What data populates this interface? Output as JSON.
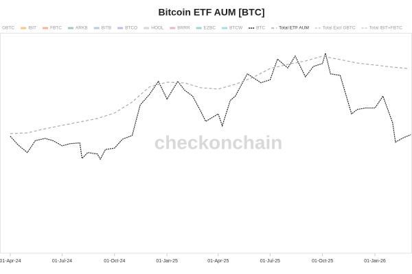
{
  "chart_data": {
    "type": "line",
    "title": "Bitcoin ETF AUM [BTC]",
    "watermark": "checkonchain",
    "legend_before": [
      {
        "name": "GBTC",
        "color": "#c9c0a8"
      },
      {
        "name": "IBIT",
        "color": "#f2c98a"
      },
      {
        "name": "FBTC",
        "color": "#f5b49a"
      },
      {
        "name": "ARKB",
        "color": "#a9c4b8"
      },
      {
        "name": "BITB",
        "color": "#b9c9e6"
      },
      {
        "name": "BTCO",
        "color": "#c5b9e6"
      },
      {
        "name": "HODL",
        "color": "#d7d7d7"
      },
      {
        "name": "BRRR",
        "color": "#e6b9c9"
      },
      {
        "name": "EZBC",
        "color": "#9fd4d0"
      },
      {
        "name": "BTCW",
        "color": "#a8dde6"
      }
    ],
    "legend_after": [
      {
        "name": "Total Excl GBTC",
        "color": "#cccccc"
      },
      {
        "name": "Total IBIT+FBTC",
        "color": "#cccccc"
      }
    ],
    "xlim": [
      "2024-03-14",
      "2026-03-07"
    ],
    "xticks": [
      {
        "value": "2024-04-01",
        "label": "01-Apr-24"
      },
      {
        "value": "2024-07-01",
        "label": "01-Jul-24"
      },
      {
        "value": "2024-10-01",
        "label": "01-Oct-24"
      },
      {
        "value": "2025-01-01",
        "label": "01-Jan-25"
      },
      {
        "value": "2025-04-01",
        "label": "01-Apr-25"
      },
      {
        "value": "2025-07-01",
        "label": "01-Jul-25"
      },
      {
        "value": "2025-10-01",
        "label": "01-Oct-25"
      },
      {
        "value": "2026-01-01",
        "label": "01-Jan-26"
      }
    ],
    "ylim": [
      -10000,
      140000
    ],
    "y2lim": [
      25000,
      1650000
    ],
    "series": [
      {
        "name": "BTC",
        "color": "#222222",
        "dash": "2,1",
        "x": [
          "2024-04-01",
          "2024-04-15",
          "2024-05-01",
          "2024-05-15",
          "2024-06-01",
          "2024-06-15",
          "2024-07-01",
          "2024-07-15",
          "2024-08-01",
          "2024-08-05",
          "2024-08-15",
          "2024-09-01",
          "2024-09-06",
          "2024-09-15",
          "2024-10-01",
          "2024-10-15",
          "2024-11-01",
          "2024-11-15",
          "2024-12-01",
          "2024-12-17",
          "2025-01-01",
          "2025-01-20",
          "2025-02-01",
          "2025-02-15",
          "2025-03-01",
          "2025-03-10",
          "2025-04-01",
          "2025-04-08",
          "2025-04-22",
          "2025-05-01",
          "2025-05-22",
          "2025-06-15",
          "2025-07-01",
          "2025-07-14",
          "2025-08-01",
          "2025-08-14",
          "2025-09-01",
          "2025-09-15",
          "2025-10-01",
          "2025-10-06",
          "2025-10-15",
          "2025-11-01",
          "2025-11-21",
          "2025-12-01",
          "2025-12-15",
          "2026-01-01",
          "2026-01-15",
          "2026-02-01",
          "2026-02-06",
          "2026-02-20",
          "2026-03-05"
        ],
        "values": [
          69000,
          63000,
          58000,
          66000,
          67500,
          66000,
          62500,
          64000,
          64500,
          54000,
          58000,
          57000,
          53500,
          60000,
          61000,
          67000,
          69500,
          90000,
          97000,
          106000,
          94000,
          106000,
          100000,
          96000,
          86000,
          79000,
          84000,
          76000,
          93000,
          96000,
          111000,
          105000,
          107000,
          121000,
          115000,
          123000,
          109000,
          116000,
          118000,
          125000,
          111000,
          110000,
          84000,
          87000,
          88000,
          88000,
          96000,
          78000,
          65000,
          68000,
          70000
        ]
      },
      {
        "name": "Total ETF AUM",
        "color": "#aaaaaa",
        "dash": "4,3",
        "axis": "y2",
        "x": [
          "2024-04-01",
          "2024-05-01",
          "2024-06-01",
          "2024-07-01",
          "2024-08-01",
          "2024-09-01",
          "2024-10-01",
          "2024-11-01",
          "2024-12-01",
          "2025-01-01",
          "2025-02-01",
          "2025-03-01",
          "2025-04-01",
          "2025-05-01",
          "2025-06-01",
          "2025-07-01",
          "2025-08-01",
          "2025-09-01",
          "2025-10-01",
          "2025-11-01",
          "2025-12-01",
          "2026-01-01",
          "2026-02-01",
          "2026-03-01"
        ],
        "values": [
          900000,
          905000,
          935000,
          960000,
          985000,
          1010000,
          1050000,
          1130000,
          1240000,
          1275000,
          1270000,
          1235000,
          1225000,
          1260000,
          1310000,
          1375000,
          1405000,
          1430000,
          1465000,
          1440000,
          1415000,
          1400000,
          1385000,
          1375000
        ]
      }
    ]
  }
}
